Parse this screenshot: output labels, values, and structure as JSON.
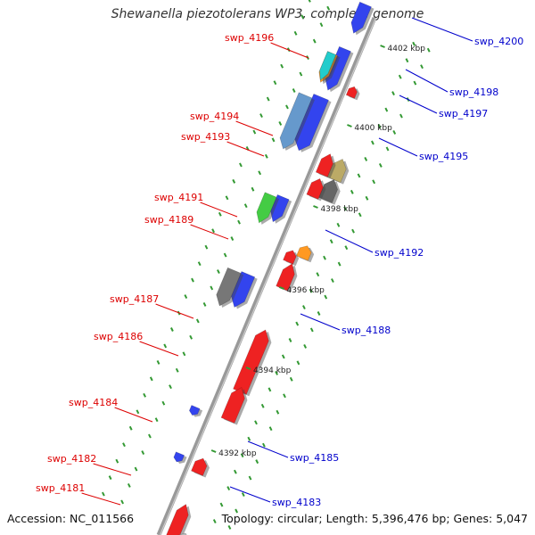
{
  "title": "Shewanella piezotolerans WP3, complete genome",
  "footer": {
    "accession": "Accession: NC_011566",
    "summary": "Topology: circular; Length: 5,396,476 bp; Genes: 5,047"
  },
  "colors": {
    "backbone": "#999999",
    "forward_label": "#0000cc",
    "reverse_label": "#dd0000",
    "tick": "#339933"
  },
  "kbp_labels": [
    "4402 kbp",
    "4400 kbp",
    "4398 kbp",
    "4396 kbp",
    "4394 kbp",
    "4392 kbp"
  ],
  "forward_genes": [
    {
      "name": "swp_4200",
      "color": "#3344ee"
    },
    {
      "name": "swp_4198",
      "color": "#3344ee"
    },
    {
      "name": "swp_4197",
      "color": "#22cccc"
    },
    {
      "name": "swp_4195",
      "color": "#6699cc"
    },
    {
      "name": "swp_4192",
      "color": "#44cc44"
    },
    {
      "name": "swp_4188",
      "color": "#777777"
    },
    {
      "name": "swp_4185",
      "color": "#3344ee"
    },
    {
      "name": "swp_4183",
      "color": "#3344ee"
    }
  ],
  "reverse_genes": [
    {
      "name": "swp_4196",
      "color": "#ee2222"
    },
    {
      "name": "swp_4194",
      "color": "#bbaa66"
    },
    {
      "name": "swp_4193",
      "color": "#666666"
    },
    {
      "name": "swp_4191",
      "color": "#ff9922"
    },
    {
      "name": "swp_4189",
      "color": "#ee2222"
    },
    {
      "name": "swp_4187",
      "color": "#ee2222"
    },
    {
      "name": "swp_4186",
      "color": "#ee2222"
    },
    {
      "name": "swp_4184",
      "color": "#ee2222"
    },
    {
      "name": "swp_4182",
      "color": "#ee2222"
    },
    {
      "name": "swp_4181",
      "color": "#bbbbbb"
    }
  ]
}
